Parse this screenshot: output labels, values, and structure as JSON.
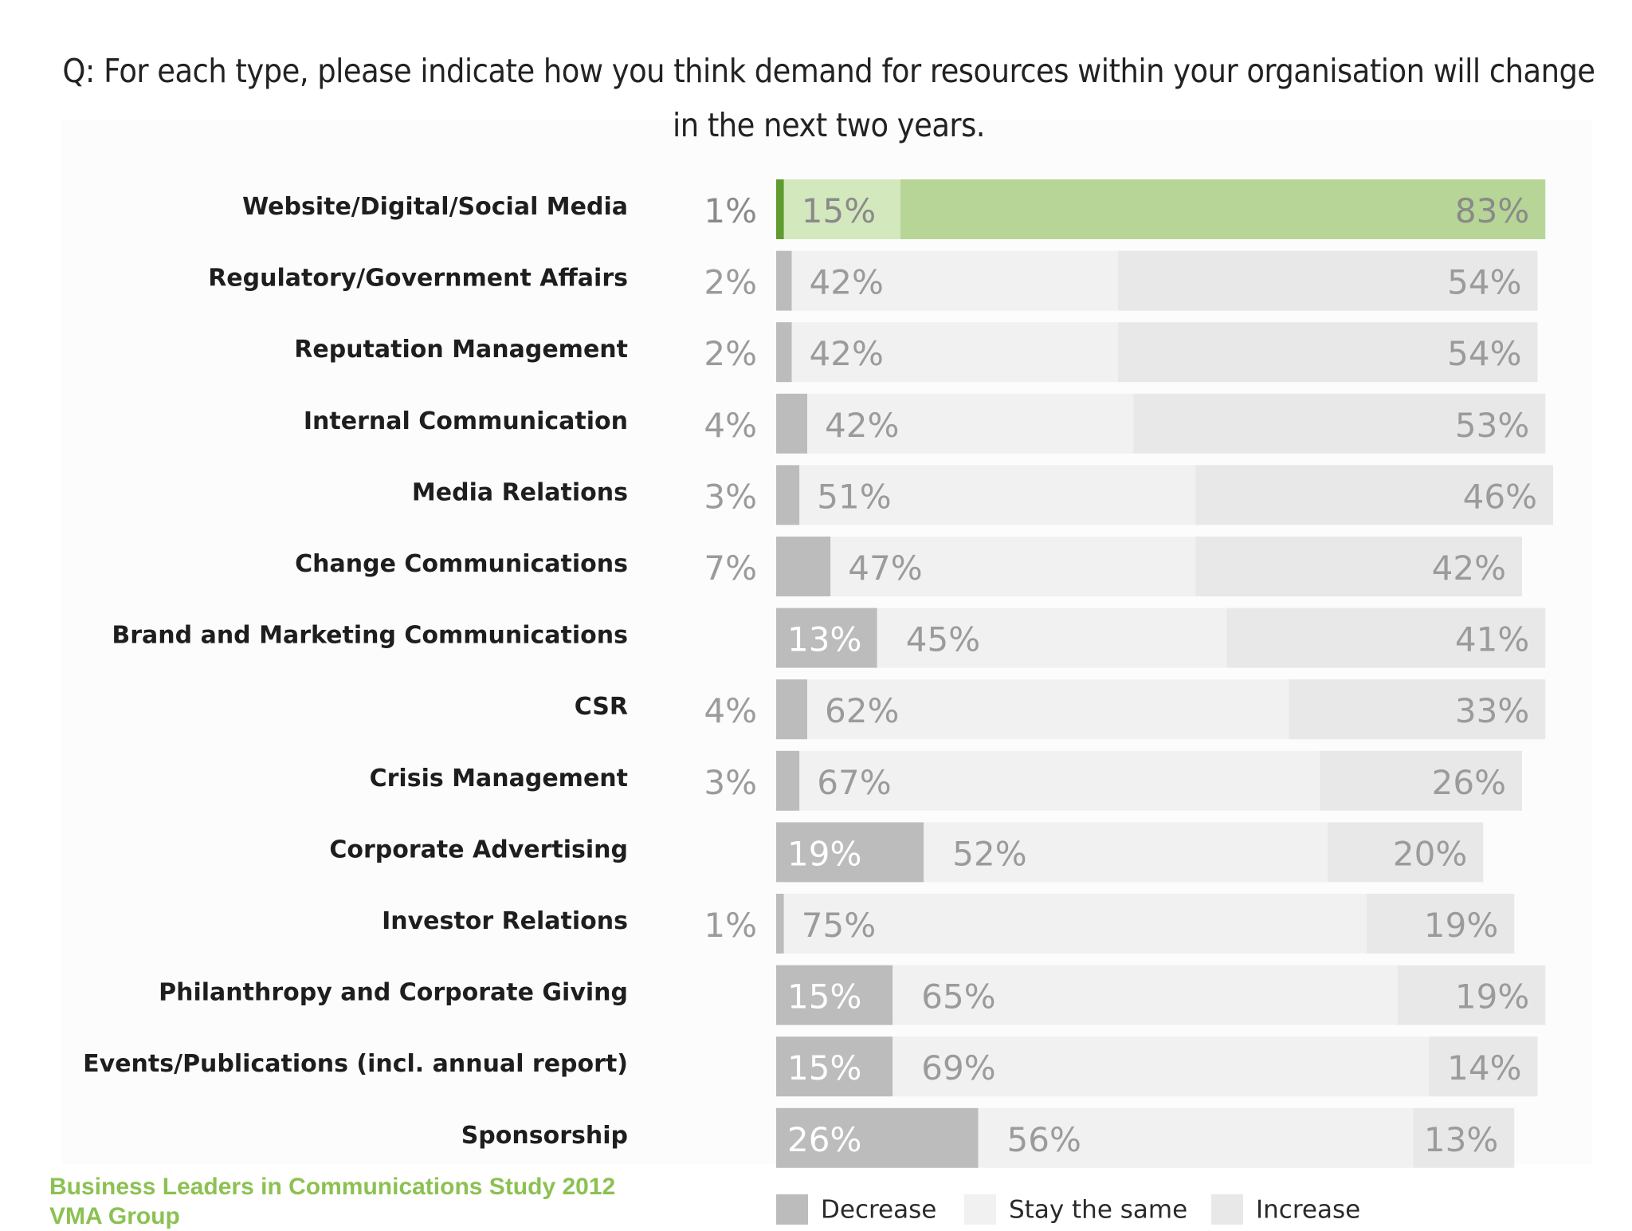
{
  "chart_data": {
    "type": "bar",
    "stacked": true,
    "orientation": "horizontal",
    "title": "Q: For each type, please indicate how you think demand for resources within your organisation will change in the next two years.",
    "categories": [
      "Website/Digital/Social Media",
      "Regulatory/Government Affairs",
      "Reputation Management",
      "Internal Communication",
      "Media Relations",
      "Change Communications",
      "Brand and Marketing Communications",
      "CSR",
      "Crisis Management",
      "Corporate Advertising",
      "Investor Relations",
      "Philanthropy and Corporate Giving",
      "Events/Publications (incl. annual report)",
      "Sponsorship"
    ],
    "series": [
      {
        "name": "Decrease",
        "values": [
          1,
          2,
          2,
          4,
          3,
          7,
          13,
          4,
          3,
          19,
          1,
          15,
          15,
          26
        ]
      },
      {
        "name": "Stay the same",
        "values": [
          15,
          42,
          42,
          42,
          51,
          47,
          45,
          62,
          67,
          52,
          75,
          65,
          69,
          56
        ]
      },
      {
        "name": "Increase",
        "values": [
          83,
          54,
          54,
          53,
          46,
          42,
          41,
          33,
          26,
          20,
          19,
          19,
          14,
          13
        ]
      }
    ],
    "unit": "%",
    "xlim": [
      0,
      100
    ],
    "legend": "bottom",
    "grid": false,
    "highlight_category": "Website/Digital/Social Media",
    "colors": {
      "decrease": "#bcbcbc",
      "stay": "#f1f1f1",
      "increase": "#e8e8e8",
      "highlight_decrease": "#5f9c2f",
      "highlight_stay": "#d4e8be",
      "highlight_increase": "#b7d596"
    }
  },
  "source": {
    "line1": "Business Leaders in Communications Study 2012",
    "line2": "VMA Group"
  }
}
